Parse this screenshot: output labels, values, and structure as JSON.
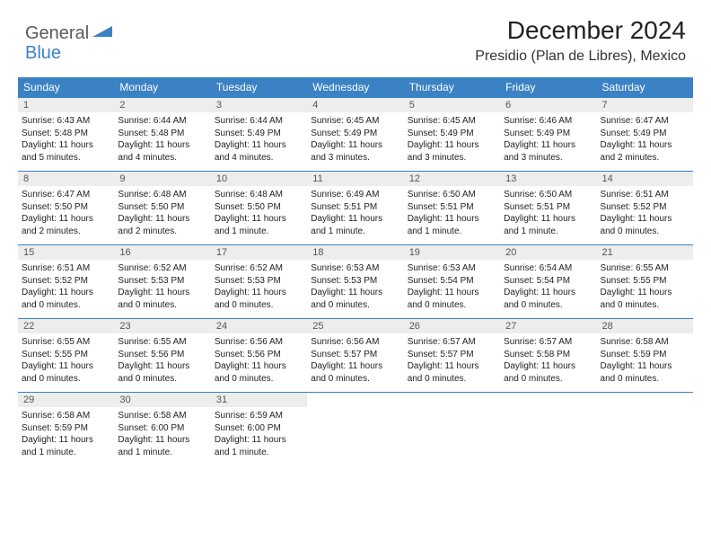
{
  "brand": {
    "part1": "General",
    "part2": "Blue"
  },
  "title": "December 2024",
  "location": "Presidio (Plan de Libres), Mexico",
  "colors": {
    "header_bg": "#3b82c4",
    "header_text": "#ffffff",
    "daynum_bg": "#ededed",
    "daynum_text": "#555555",
    "cell_text": "#222222",
    "rule": "#3b82c4"
  },
  "day_labels": [
    "Sunday",
    "Monday",
    "Tuesday",
    "Wednesday",
    "Thursday",
    "Friday",
    "Saturday"
  ],
  "weeks": [
    [
      {
        "n": "1",
        "sr": "Sunrise: 6:43 AM",
        "ss": "Sunset: 5:48 PM",
        "d1": "Daylight: 11 hours",
        "d2": "and 5 minutes."
      },
      {
        "n": "2",
        "sr": "Sunrise: 6:44 AM",
        "ss": "Sunset: 5:48 PM",
        "d1": "Daylight: 11 hours",
        "d2": "and 4 minutes."
      },
      {
        "n": "3",
        "sr": "Sunrise: 6:44 AM",
        "ss": "Sunset: 5:49 PM",
        "d1": "Daylight: 11 hours",
        "d2": "and 4 minutes."
      },
      {
        "n": "4",
        "sr": "Sunrise: 6:45 AM",
        "ss": "Sunset: 5:49 PM",
        "d1": "Daylight: 11 hours",
        "d2": "and 3 minutes."
      },
      {
        "n": "5",
        "sr": "Sunrise: 6:45 AM",
        "ss": "Sunset: 5:49 PM",
        "d1": "Daylight: 11 hours",
        "d2": "and 3 minutes."
      },
      {
        "n": "6",
        "sr": "Sunrise: 6:46 AM",
        "ss": "Sunset: 5:49 PM",
        "d1": "Daylight: 11 hours",
        "d2": "and 3 minutes."
      },
      {
        "n": "7",
        "sr": "Sunrise: 6:47 AM",
        "ss": "Sunset: 5:49 PM",
        "d1": "Daylight: 11 hours",
        "d2": "and 2 minutes."
      }
    ],
    [
      {
        "n": "8",
        "sr": "Sunrise: 6:47 AM",
        "ss": "Sunset: 5:50 PM",
        "d1": "Daylight: 11 hours",
        "d2": "and 2 minutes."
      },
      {
        "n": "9",
        "sr": "Sunrise: 6:48 AM",
        "ss": "Sunset: 5:50 PM",
        "d1": "Daylight: 11 hours",
        "d2": "and 2 minutes."
      },
      {
        "n": "10",
        "sr": "Sunrise: 6:48 AM",
        "ss": "Sunset: 5:50 PM",
        "d1": "Daylight: 11 hours",
        "d2": "and 1 minute."
      },
      {
        "n": "11",
        "sr": "Sunrise: 6:49 AM",
        "ss": "Sunset: 5:51 PM",
        "d1": "Daylight: 11 hours",
        "d2": "and 1 minute."
      },
      {
        "n": "12",
        "sr": "Sunrise: 6:50 AM",
        "ss": "Sunset: 5:51 PM",
        "d1": "Daylight: 11 hours",
        "d2": "and 1 minute."
      },
      {
        "n": "13",
        "sr": "Sunrise: 6:50 AM",
        "ss": "Sunset: 5:51 PM",
        "d1": "Daylight: 11 hours",
        "d2": "and 1 minute."
      },
      {
        "n": "14",
        "sr": "Sunrise: 6:51 AM",
        "ss": "Sunset: 5:52 PM",
        "d1": "Daylight: 11 hours",
        "d2": "and 0 minutes."
      }
    ],
    [
      {
        "n": "15",
        "sr": "Sunrise: 6:51 AM",
        "ss": "Sunset: 5:52 PM",
        "d1": "Daylight: 11 hours",
        "d2": "and 0 minutes."
      },
      {
        "n": "16",
        "sr": "Sunrise: 6:52 AM",
        "ss": "Sunset: 5:53 PM",
        "d1": "Daylight: 11 hours",
        "d2": "and 0 minutes."
      },
      {
        "n": "17",
        "sr": "Sunrise: 6:52 AM",
        "ss": "Sunset: 5:53 PM",
        "d1": "Daylight: 11 hours",
        "d2": "and 0 minutes."
      },
      {
        "n": "18",
        "sr": "Sunrise: 6:53 AM",
        "ss": "Sunset: 5:53 PM",
        "d1": "Daylight: 11 hours",
        "d2": "and 0 minutes."
      },
      {
        "n": "19",
        "sr": "Sunrise: 6:53 AM",
        "ss": "Sunset: 5:54 PM",
        "d1": "Daylight: 11 hours",
        "d2": "and 0 minutes."
      },
      {
        "n": "20",
        "sr": "Sunrise: 6:54 AM",
        "ss": "Sunset: 5:54 PM",
        "d1": "Daylight: 11 hours",
        "d2": "and 0 minutes."
      },
      {
        "n": "21",
        "sr": "Sunrise: 6:55 AM",
        "ss": "Sunset: 5:55 PM",
        "d1": "Daylight: 11 hours",
        "d2": "and 0 minutes."
      }
    ],
    [
      {
        "n": "22",
        "sr": "Sunrise: 6:55 AM",
        "ss": "Sunset: 5:55 PM",
        "d1": "Daylight: 11 hours",
        "d2": "and 0 minutes."
      },
      {
        "n": "23",
        "sr": "Sunrise: 6:55 AM",
        "ss": "Sunset: 5:56 PM",
        "d1": "Daylight: 11 hours",
        "d2": "and 0 minutes."
      },
      {
        "n": "24",
        "sr": "Sunrise: 6:56 AM",
        "ss": "Sunset: 5:56 PM",
        "d1": "Daylight: 11 hours",
        "d2": "and 0 minutes."
      },
      {
        "n": "25",
        "sr": "Sunrise: 6:56 AM",
        "ss": "Sunset: 5:57 PM",
        "d1": "Daylight: 11 hours",
        "d2": "and 0 minutes."
      },
      {
        "n": "26",
        "sr": "Sunrise: 6:57 AM",
        "ss": "Sunset: 5:57 PM",
        "d1": "Daylight: 11 hours",
        "d2": "and 0 minutes."
      },
      {
        "n": "27",
        "sr": "Sunrise: 6:57 AM",
        "ss": "Sunset: 5:58 PM",
        "d1": "Daylight: 11 hours",
        "d2": "and 0 minutes."
      },
      {
        "n": "28",
        "sr": "Sunrise: 6:58 AM",
        "ss": "Sunset: 5:59 PM",
        "d1": "Daylight: 11 hours",
        "d2": "and 0 minutes."
      }
    ],
    [
      {
        "n": "29",
        "sr": "Sunrise: 6:58 AM",
        "ss": "Sunset: 5:59 PM",
        "d1": "Daylight: 11 hours",
        "d2": "and 1 minute."
      },
      {
        "n": "30",
        "sr": "Sunrise: 6:58 AM",
        "ss": "Sunset: 6:00 PM",
        "d1": "Daylight: 11 hours",
        "d2": "and 1 minute."
      },
      {
        "n": "31",
        "sr": "Sunrise: 6:59 AM",
        "ss": "Sunset: 6:00 PM",
        "d1": "Daylight: 11 hours",
        "d2": "and 1 minute."
      },
      null,
      null,
      null,
      null
    ]
  ]
}
